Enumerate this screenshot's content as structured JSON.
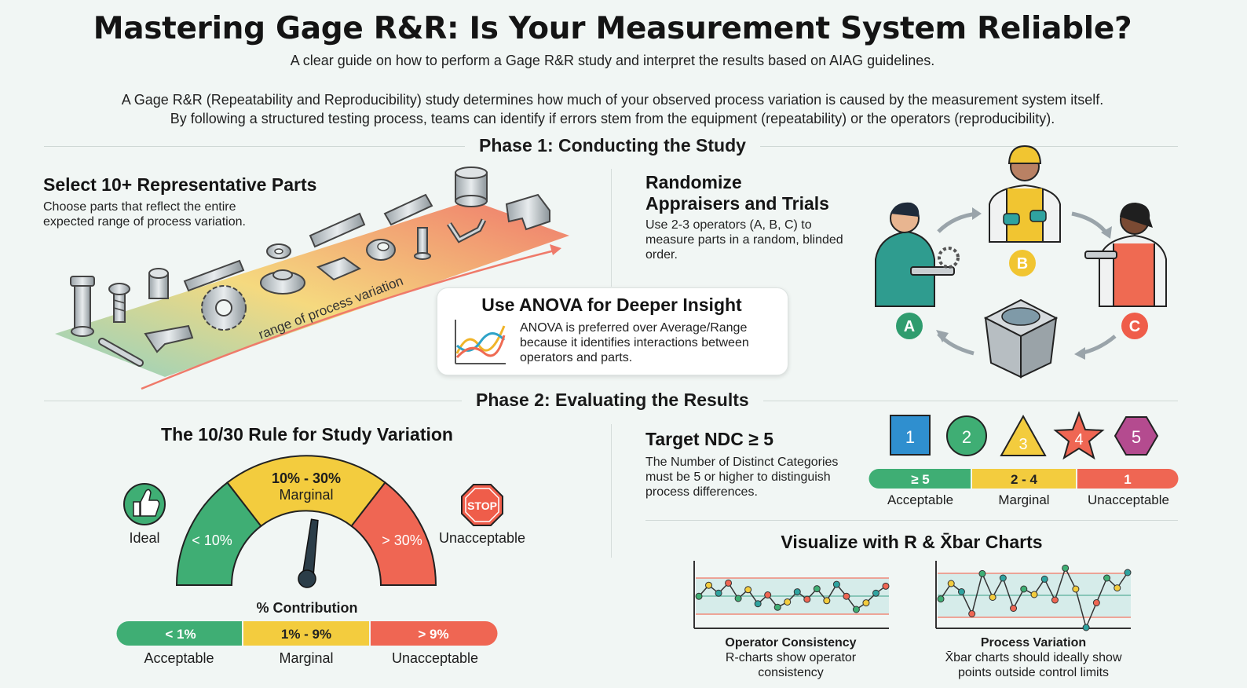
{
  "header": {
    "title": "Mastering Gage R&R: Is Your Measurement System Reliable?",
    "subtitle": "A clear guide on how to perform a Gage R&R study and interpret the results based on AIAG guidelines.",
    "intro_line1": "A Gage R&R (Repeatability and Reproducibility) study determines how much of your observed process variation is caused by the measurement system itself.",
    "intro_line2": "By following a structured testing process, teams can identify if errors stem from the equipment (repeatability) or the operators (reproducibility)."
  },
  "phase1": {
    "heading": "Phase 1: Conducting the Study",
    "parts": {
      "title": "Select 10+ Representative Parts",
      "desc_line1": "Choose parts that reflect the entire",
      "desc_line2": "expected range of process variation.",
      "ribbon_label": "range of process variation"
    },
    "randomize": {
      "title_line1": "Randomize",
      "title_line2": "Appraisers and Trials",
      "desc_line1": "Use 2-3 operators (A, B, C) to",
      "desc_line2": "measure parts in a random, blinded",
      "desc_line3": "order.",
      "operators": [
        "A",
        "B",
        "C"
      ]
    },
    "anova": {
      "title": "Use ANOVA for Deeper Insight",
      "desc_line1": "ANOVA is preferred over Average/Range",
      "desc_line2": "because it identifies interactions between",
      "desc_line3": "operators and parts."
    }
  },
  "phase2": {
    "heading": "Phase 2: Evaluating the Results",
    "rule": {
      "title": "The 10/30 Rule for Study Variation",
      "ideal_label": "Ideal",
      "unacceptable_label": "Unacceptable",
      "stop_text": "STOP",
      "gauge_low": "< 10%",
      "gauge_mid_value": "10% - 30%",
      "gauge_mid_label": "Marginal",
      "gauge_high": "> 30%",
      "needle_value_pct": 22,
      "contribution_title": "% Contribution",
      "contribution": [
        {
          "value": "< 1%",
          "label": "Acceptable",
          "color": "#3fae74"
        },
        {
          "value": "1% - 9%",
          "label": "Marginal",
          "color": "#f3cc3e"
        },
        {
          "value": "> 9%",
          "label": "Unacceptable",
          "color": "#ef6653"
        }
      ]
    },
    "ndc": {
      "title": "Target NDC ≥ 5",
      "desc_line1": "The Number of Distinct Categories",
      "desc_line2": "must be 5 or higher to distinguish",
      "desc_line3": "process differences.",
      "shapes": [
        "1",
        "2",
        "3",
        "4",
        "5"
      ],
      "levels": [
        {
          "value": "≥ 5",
          "label": "Acceptable",
          "color": "#3fae74"
        },
        {
          "value": "2 - 4",
          "label": "Marginal",
          "color": "#f3cc3e"
        },
        {
          "value": "1",
          "label": "Unacceptable",
          "color": "#ef6653"
        }
      ]
    },
    "charts": {
      "title": "Visualize with R & X̄bar Charts",
      "r_chart": {
        "caption_title": "Operator Consistency",
        "caption_line1": "R-charts show operator",
        "caption_line2": "consistency",
        "values": [
          0.55,
          0.8,
          0.62,
          0.85,
          0.5,
          0.7,
          0.38,
          0.58,
          0.3,
          0.42,
          0.65,
          0.48,
          0.72,
          0.45,
          0.82,
          0.55,
          0.25,
          0.4,
          0.62,
          0.78
        ]
      },
      "xbar_chart": {
        "caption_title": "Process Variation",
        "caption_line1": "X̄bar charts should ideally show",
        "caption_line2": "points outside control limits",
        "values": [
          0.42,
          0.7,
          0.55,
          0.15,
          0.88,
          0.45,
          0.8,
          0.25,
          0.6,
          0.5,
          0.78,
          0.4,
          0.98,
          0.6,
          -0.1,
          0.35,
          0.8,
          0.62,
          0.9
        ]
      }
    }
  },
  "colors": {
    "green": "#3fae74",
    "yellow": "#f3cc3e",
    "red": "#ef6653",
    "blue": "#2f8fcf",
    "purple": "#b44b8f"
  }
}
